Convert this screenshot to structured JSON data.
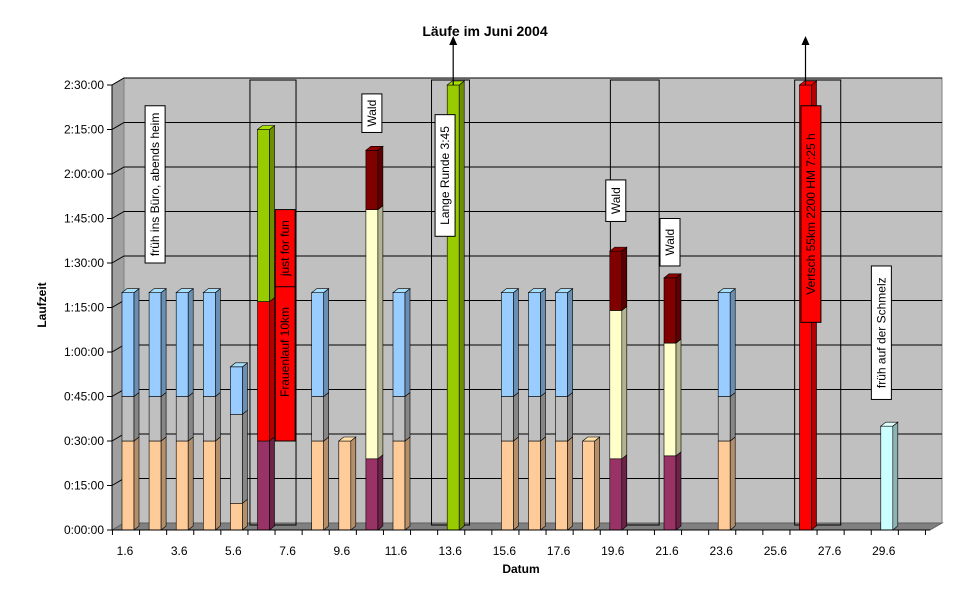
{
  "chart_data": {
    "type": "bar",
    "stacked": true,
    "three_d": true,
    "title": "Läufe im Juni 2004",
    "xlabel": "Datum",
    "ylabel": "Laufzeit",
    "ylim_minutes": [
      0,
      150
    ],
    "y_ticks": [
      {
        "label": "0:00:00",
        "value": 0
      },
      {
        "label": "0:15:00",
        "value": 15
      },
      {
        "label": "0:30:00",
        "value": 30
      },
      {
        "label": "0:45:00",
        "value": 45
      },
      {
        "label": "1:00:00",
        "value": 60
      },
      {
        "label": "1:15:00",
        "value": 75
      },
      {
        "label": "1:30:00",
        "value": 90
      },
      {
        "label": "1:45:00",
        "value": 105
      },
      {
        "label": "2:00:00",
        "value": 120
      },
      {
        "label": "2:15:00",
        "value": 135
      },
      {
        "label": "2:30:00",
        "value": 150
      }
    ],
    "x_tick_labels": [
      "1.6",
      "3.6",
      "5.6",
      "7.6",
      "9.6",
      "11.6",
      "13.6",
      "15.6",
      "17.6",
      "19.6",
      "21.6",
      "23.6",
      "25.6",
      "27.6",
      "29.6"
    ],
    "grid": true,
    "segment_colors": {
      "peach": "#FFCC99",
      "gray": "#C0C0C0",
      "blue": "#99CCFF",
      "purple": "#993366",
      "cream": "#FFFFCC",
      "maroon": "#800000",
      "red": "#FF0000",
      "green": "#99CC00",
      "lightcyan": "#CCFFFF"
    },
    "bars": [
      {
        "day": 1,
        "segments": [
          {
            "c": "peach",
            "v": 30
          },
          {
            "c": "gray",
            "v": 15
          },
          {
            "c": "blue",
            "v": 35
          }
        ]
      },
      {
        "day": 2,
        "segments": [
          {
            "c": "peach",
            "v": 30
          },
          {
            "c": "gray",
            "v": 15
          },
          {
            "c": "blue",
            "v": 35
          }
        ]
      },
      {
        "day": 3,
        "segments": [
          {
            "c": "peach",
            "v": 30
          },
          {
            "c": "gray",
            "v": 15
          },
          {
            "c": "blue",
            "v": 35
          }
        ]
      },
      {
        "day": 4,
        "segments": [
          {
            "c": "peach",
            "v": 30
          },
          {
            "c": "gray",
            "v": 15
          },
          {
            "c": "blue",
            "v": 35
          }
        ]
      },
      {
        "day": 5,
        "segments": [
          {
            "c": "peach",
            "v": 9
          },
          {
            "c": "gray",
            "v": 30
          },
          {
            "c": "blue",
            "v": 16
          }
        ]
      },
      {
        "day": 6,
        "segments": [
          {
            "c": "purple",
            "v": 30
          },
          {
            "c": "red",
            "v": 47
          },
          {
            "c": "green",
            "v": 58
          }
        ]
      },
      {
        "day": 8,
        "segments": [
          {
            "c": "peach",
            "v": 30
          },
          {
            "c": "gray",
            "v": 15
          },
          {
            "c": "blue",
            "v": 35
          }
        ]
      },
      {
        "day": 9,
        "segments": [
          {
            "c": "peach",
            "v": 30
          }
        ]
      },
      {
        "day": 10,
        "segments": [
          {
            "c": "purple",
            "v": 24
          },
          {
            "c": "cream",
            "v": 84
          },
          {
            "c": "maroon",
            "v": 20
          }
        ]
      },
      {
        "day": 11,
        "segments": [
          {
            "c": "peach",
            "v": 30
          },
          {
            "c": "gray",
            "v": 15
          },
          {
            "c": "blue",
            "v": 35
          }
        ]
      },
      {
        "day": 13,
        "segments": [
          {
            "c": "green",
            "v": 150
          }
        ]
      },
      {
        "day": 15,
        "segments": [
          {
            "c": "peach",
            "v": 30
          },
          {
            "c": "gray",
            "v": 15
          },
          {
            "c": "blue",
            "v": 35
          }
        ]
      },
      {
        "day": 16,
        "segments": [
          {
            "c": "peach",
            "v": 30
          },
          {
            "c": "gray",
            "v": 15
          },
          {
            "c": "blue",
            "v": 35
          }
        ]
      },
      {
        "day": 17,
        "segments": [
          {
            "c": "peach",
            "v": 30
          },
          {
            "c": "gray",
            "v": 15
          },
          {
            "c": "blue",
            "v": 35
          }
        ]
      },
      {
        "day": 18,
        "segments": [
          {
            "c": "peach",
            "v": 30
          }
        ]
      },
      {
        "day": 19,
        "segments": [
          {
            "c": "purple",
            "v": 24
          },
          {
            "c": "cream",
            "v": 50
          },
          {
            "c": "maroon",
            "v": 20
          }
        ]
      },
      {
        "day": 21,
        "segments": [
          {
            "c": "purple",
            "v": 25
          },
          {
            "c": "cream",
            "v": 38
          },
          {
            "c": "maroon",
            "v": 22
          }
        ]
      },
      {
        "day": 23,
        "segments": [
          {
            "c": "peach",
            "v": 30
          },
          {
            "c": "gray",
            "v": 15
          },
          {
            "c": "blue",
            "v": 35
          }
        ]
      },
      {
        "day": 26,
        "segments": [
          {
            "c": "red",
            "v": 150
          }
        ]
      },
      {
        "day": 29,
        "segments": [
          {
            "c": "lightcyan",
            "v": 35
          }
        ]
      }
    ],
    "arrows": [
      13,
      26
    ],
    "annotations": [
      {
        "text": "früh ins Büro, abends heim",
        "day": 2,
        "from": 90,
        "to": 143,
        "bg": "#FFFFFF"
      },
      {
        "text": "Frauenlauf 10km",
        "day": 6.8,
        "from": 30,
        "to": 90,
        "bg": "#FF0000"
      },
      {
        "text": "just for fun",
        "day": 6.8,
        "from": 82,
        "to": 108,
        "bg": "#FF0000"
      },
      {
        "text": "Wald",
        "day": 10,
        "from": 134,
        "to": 147,
        "bg": "#FFFFFF"
      },
      {
        "text": "Lange Runde 3:45",
        "day": 12.7,
        "from": 99,
        "to": 140,
        "bg": "#FFFFFF"
      },
      {
        "text": "Wald",
        "day": 19,
        "from": 104,
        "to": 118,
        "bg": "#FFFFFF"
      },
      {
        "text": "Wald",
        "day": 21,
        "from": 89,
        "to": 105,
        "bg": "#FFFFFF"
      },
      {
        "text": "Vertsch 55km 2200 HM   7:25 h",
        "day": 26.2,
        "from": 70,
        "to": 143,
        "bg": "#FF0000"
      },
      {
        "text": "früh auf der Schmelz",
        "day": 28.8,
        "from": 44,
        "to": 89,
        "bg": "#FFFFFF"
      }
    ],
    "outlines": [
      {
        "from_day": 5.5,
        "to_day": 7.2
      },
      {
        "from_day": 12.2,
        "to_day": 13.6
      },
      {
        "from_day": 18.8,
        "to_day": 20.6
      },
      {
        "from_day": 25.6,
        "to_day": 27.3
      }
    ]
  }
}
